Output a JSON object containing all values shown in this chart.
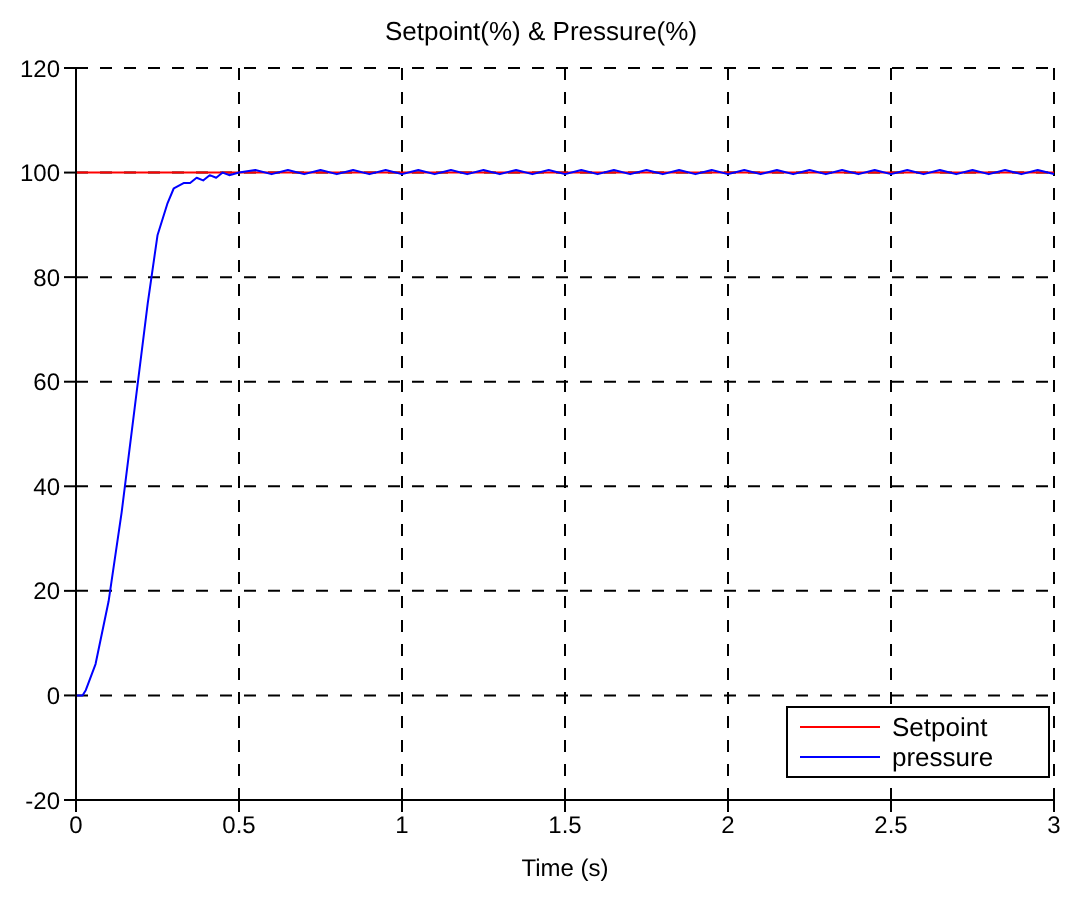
{
  "chart_data": {
    "type": "line",
    "title": "Setpoint(%) & Pressure(%)",
    "xlabel": "Time (s)",
    "xlim": [
      0,
      3
    ],
    "xticks": [
      0,
      0.5,
      1,
      1.5,
      2,
      2.5,
      3
    ],
    "ylim": [
      -20,
      120
    ],
    "yticks": [
      -20,
      0,
      20,
      40,
      60,
      80,
      100,
      120
    ],
    "grid": true,
    "legend": "bottom right",
    "series": [
      {
        "name": "Setpoint",
        "color": "#ff0000",
        "x": [
          0,
          3
        ],
        "values": [
          100,
          100
        ]
      },
      {
        "name": "pressure",
        "color": "#0000ff",
        "x": [
          0,
          0.02,
          0.03,
          0.06,
          0.1,
          0.14,
          0.18,
          0.22,
          0.25,
          0.28,
          0.3,
          0.33,
          0.35,
          0.37,
          0.39,
          0.41,
          0.43,
          0.45,
          0.47,
          0.5,
          0.55,
          0.6,
          0.65,
          0.7,
          0.75,
          0.8,
          0.85,
          0.9,
          0.95,
          1,
          1.05,
          1.1,
          1.15,
          1.2,
          1.25,
          1.3,
          1.35,
          1.4,
          1.45,
          1.5,
          1.55,
          1.6,
          1.65,
          1.7,
          1.75,
          1.8,
          1.85,
          1.9,
          1.95,
          2,
          2.05,
          2.1,
          2.15,
          2.2,
          2.25,
          2.3,
          2.35,
          2.4,
          2.45,
          2.5,
          2.55,
          2.6,
          2.65,
          2.7,
          2.75,
          2.8,
          2.85,
          2.9,
          2.95,
          3
        ],
        "values": [
          0,
          0,
          1,
          6,
          18,
          35,
          55,
          75,
          88,
          94,
          97,
          98,
          98,
          99,
          98.5,
          99.5,
          99,
          100,
          99.5,
          100,
          100.5,
          99.7,
          100.5,
          99.7,
          100.5,
          99.7,
          100.5,
          99.7,
          100.5,
          99.7,
          100.5,
          99.7,
          100.5,
          99.7,
          100.5,
          99.7,
          100.5,
          99.7,
          100.5,
          99.7,
          100.5,
          99.7,
          100.5,
          99.7,
          100.5,
          99.7,
          100.5,
          99.7,
          100.5,
          99.7,
          100.5,
          99.7,
          100.5,
          99.7,
          100.5,
          99.7,
          100.5,
          99.7,
          100.5,
          99.7,
          100.5,
          99.7,
          100.5,
          99.7,
          100.5,
          99.7,
          100.5,
          99.7,
          100.5,
          99.7
        ]
      }
    ]
  }
}
